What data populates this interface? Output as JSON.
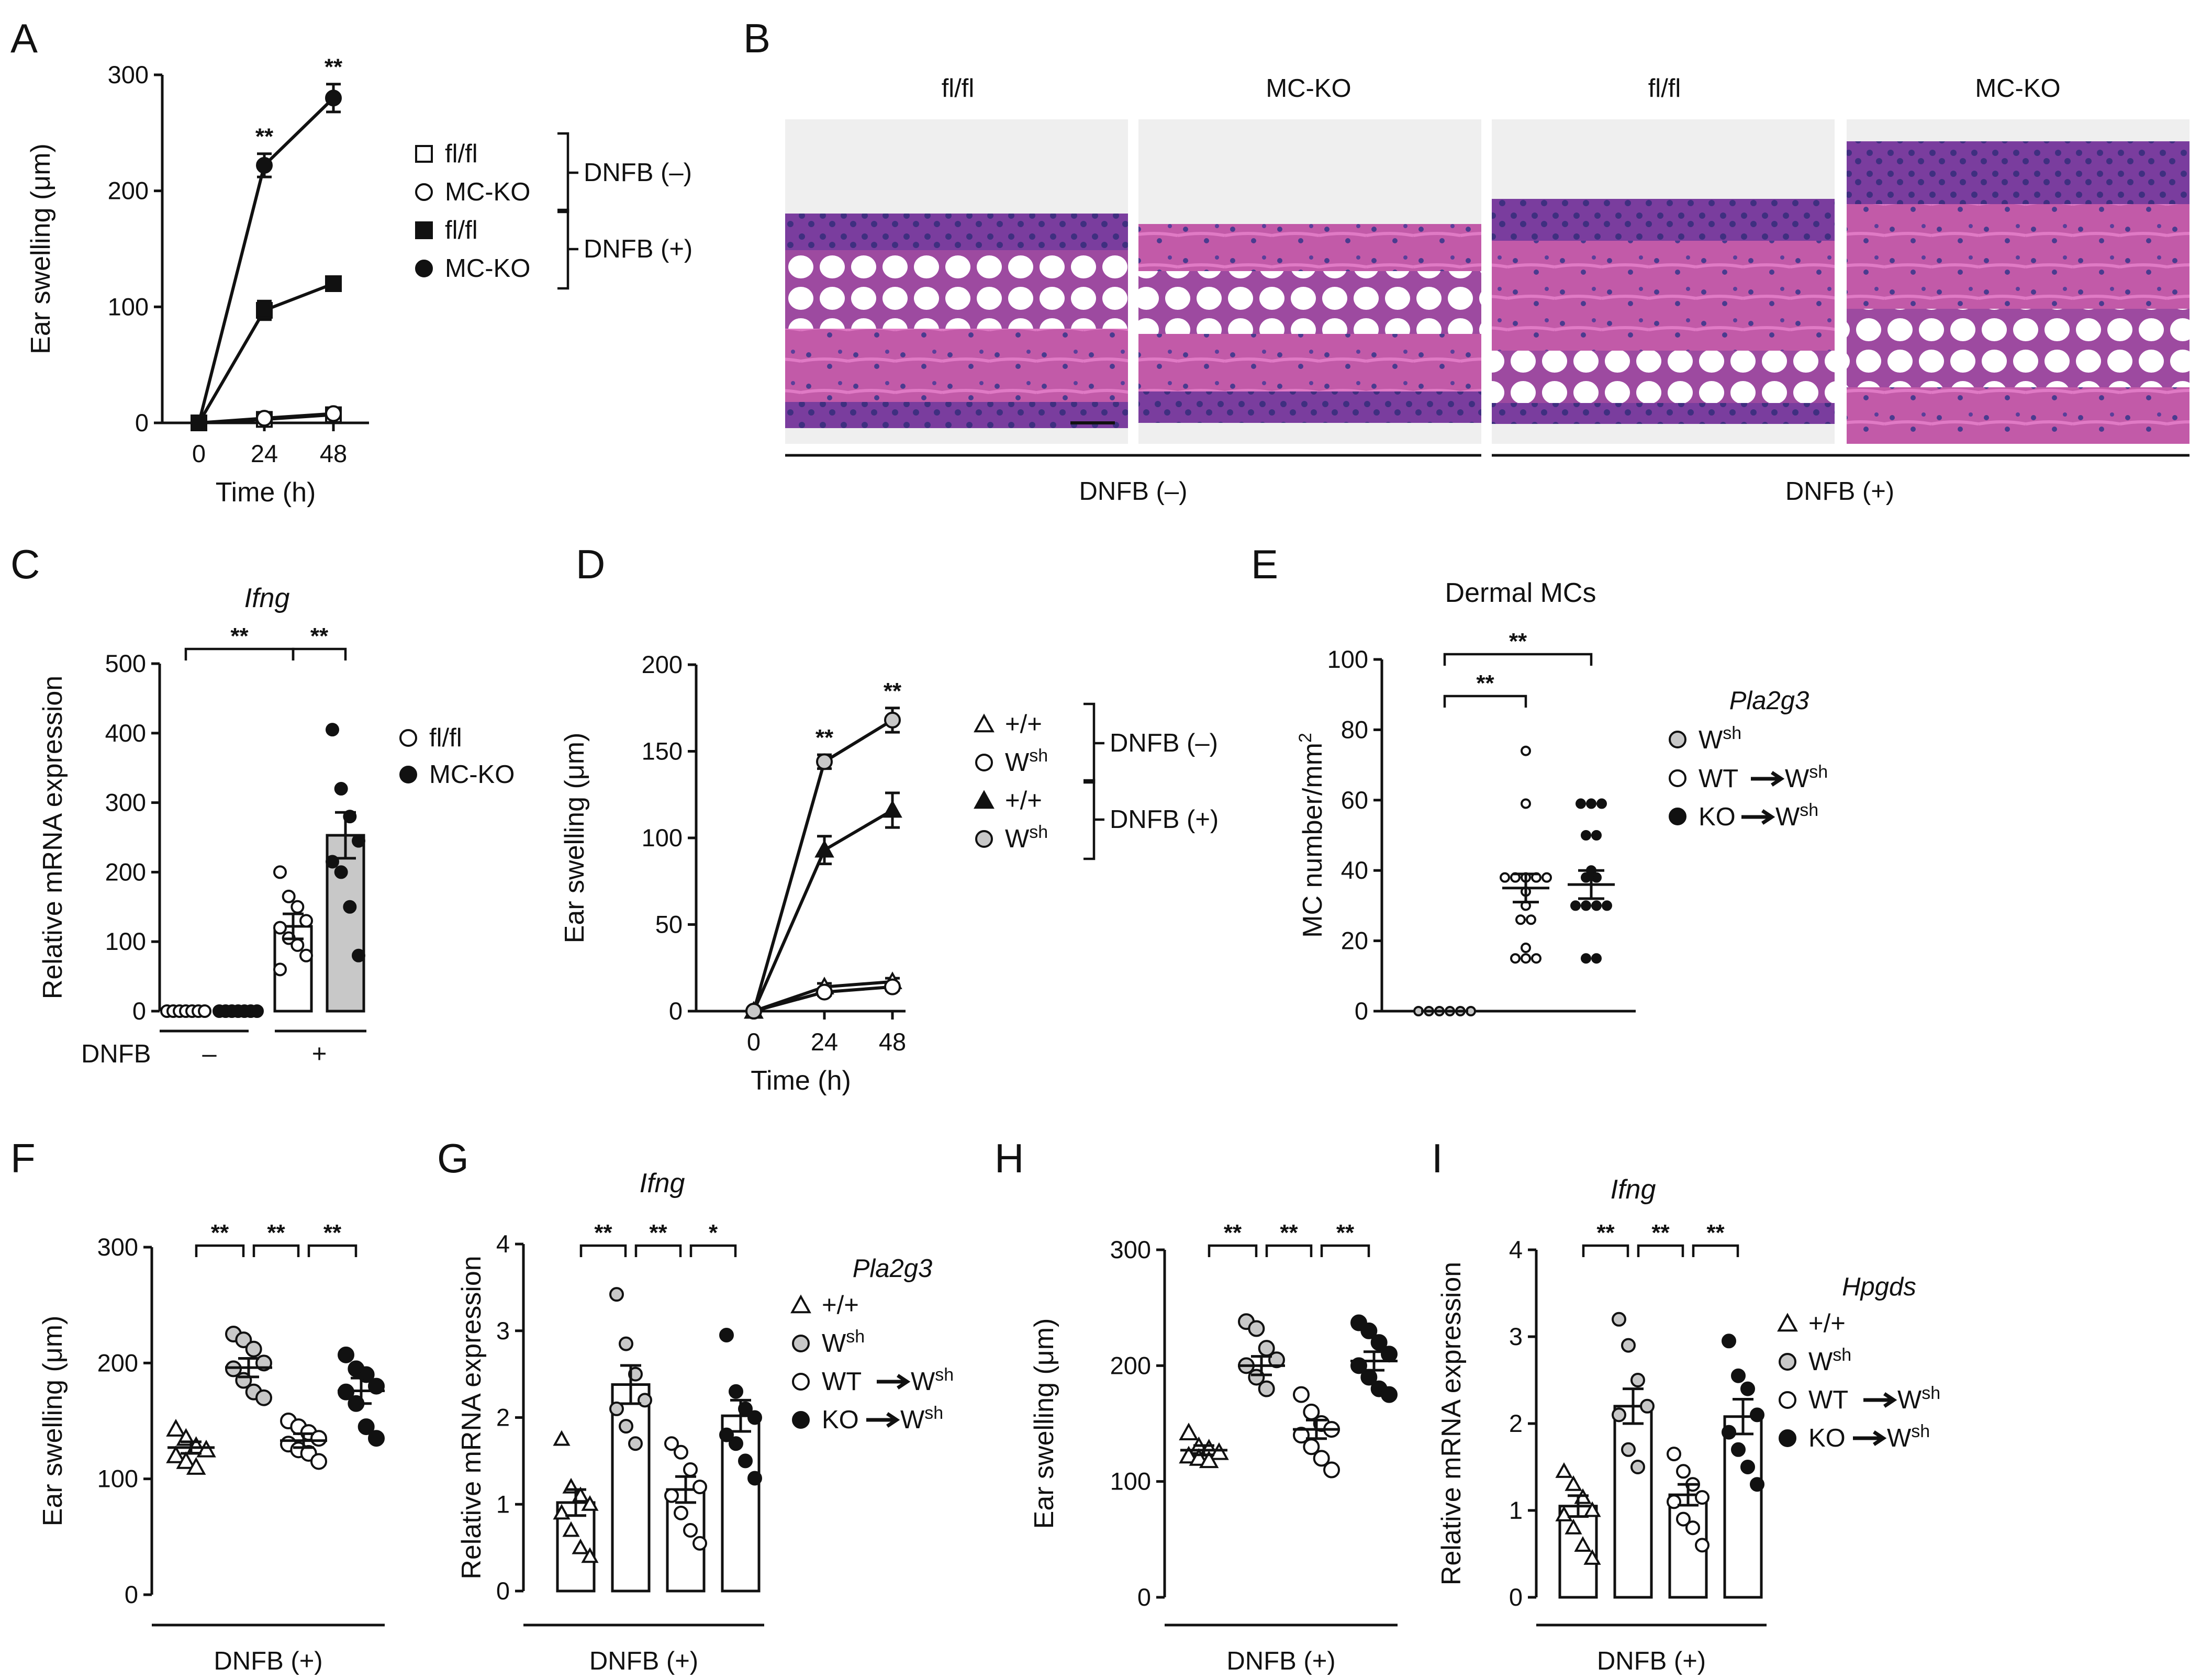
{
  "colors": {
    "white": "#ffffff",
    "black": "#111111",
    "gray": "#c8c8c8",
    "tissue_bg": "#ededed"
  },
  "icons": {
    "legend_square_open": "open-square",
    "legend_circle_open": "open-circle",
    "legend_square_filled": "filled-square",
    "legend_circle_filled": "filled-circle",
    "legend_triangle_open": "open-triangle",
    "legend_triangle_filled": "filled-triangle",
    "legend_circle_gray": "gray-circle",
    "arrow": "right-arrow"
  },
  "panels": {
    "A": {
      "letter": "A"
    },
    "B": {
      "letter": "B",
      "image_labels": [
        "fl/fl",
        "MC-KO",
        "fl/fl",
        "MC-KO"
      ],
      "group_labels": [
        "DNFB (–)",
        "DNFB (+)"
      ]
    },
    "C": {
      "letter": "C"
    },
    "D": {
      "letter": "D"
    },
    "E": {
      "letter": "E"
    },
    "F": {
      "letter": "F"
    },
    "G": {
      "letter": "G"
    },
    "H": {
      "letter": "H"
    },
    "I": {
      "letter": "I"
    }
  },
  "chart_data": [
    {
      "panel": "A",
      "type": "line",
      "title": "",
      "xlabel": "Time (h)",
      "ylabel": "Ear swelling (μm)",
      "x": [
        0,
        24,
        48
      ],
      "x_ticks": [
        "0",
        "24",
        "48"
      ],
      "ylim": [
        0,
        300
      ],
      "y_ticks": [
        "0",
        "100",
        "200",
        "300"
      ],
      "series": [
        {
          "name": "fl/fl",
          "group": "DNFB (–)",
          "marker": "square-open",
          "values": [
            0,
            3,
            7
          ],
          "err": [
            1,
            2,
            2
          ]
        },
        {
          "name": "MC-KO",
          "group": "DNFB (–)",
          "marker": "circle-open",
          "values": [
            0,
            4,
            8
          ],
          "err": [
            1,
            2,
            2
          ]
        },
        {
          "name": "fl/fl",
          "group": "DNFB (+)",
          "marker": "square-filled",
          "values": [
            0,
            97,
            120
          ],
          "err": [
            1,
            8,
            6
          ]
        },
        {
          "name": "MC-KO",
          "group": "DNFB (+)",
          "marker": "circle-filled",
          "values": [
            0,
            222,
            280
          ],
          "err": [
            1,
            10,
            12
          ]
        }
      ],
      "annotations": [
        "**",
        "**"
      ],
      "legend": {
        "labels": [
          "fl/fl",
          "MC-KO",
          "fl/fl",
          "MC-KO"
        ],
        "groups": [
          "DNFB (–)",
          "DNFB (+)"
        ]
      }
    },
    {
      "panel": "C",
      "type": "bar",
      "title": "Ifng",
      "ylabel": "Relative mRNA expression",
      "ylim": [
        0,
        500
      ],
      "y_ticks": [
        "0",
        "100",
        "200",
        "300",
        "400",
        "500"
      ],
      "row_label": "DNFB",
      "x_groups": [
        "–",
        "+"
      ],
      "categories": [
        "fl/fl –",
        "MC-KO –",
        "fl/fl +",
        "MC-KO +"
      ],
      "values": [
        0,
        0,
        122,
        253
      ],
      "err": [
        1,
        1,
        18,
        33
      ],
      "points": [
        [
          0,
          0,
          0,
          0,
          0,
          0,
          0
        ],
        [
          0,
          0,
          0,
          0,
          0,
          0,
          0
        ],
        [
          200,
          165,
          150,
          130,
          120,
          105,
          95,
          80,
          60
        ],
        [
          405,
          320,
          280,
          245,
          215,
          200,
          150,
          80
        ]
      ],
      "fills": [
        "white",
        "white",
        "white",
        "gray"
      ],
      "point_styles": [
        "open",
        "filled",
        "open",
        "filled"
      ],
      "significance": [
        {
          "label": "**",
          "from": 0,
          "to": 2
        },
        {
          "label": "**",
          "from": 2,
          "to": 3
        }
      ],
      "legend": {
        "labels": [
          "fl/fl",
          "MC-KO"
        ]
      }
    },
    {
      "panel": "D",
      "type": "line",
      "title": "",
      "xlabel": "Time (h)",
      "ylabel": "Ear swelling (μm)",
      "x": [
        0,
        24,
        48
      ],
      "x_ticks": [
        "0",
        "24",
        "48"
      ],
      "ylim": [
        0,
        200
      ],
      "y_ticks": [
        "0",
        "50",
        "100",
        "150",
        "200"
      ],
      "series": [
        {
          "name": "+/+",
          "group": "DNFB (–)",
          "marker": "triangle-open",
          "values": [
            0,
            14,
            17
          ],
          "err": [
            1,
            2,
            2
          ]
        },
        {
          "name": "Wsh",
          "group": "DNFB (–)",
          "marker": "circle-open",
          "values": [
            0,
            11,
            14
          ],
          "err": [
            1,
            2,
            2
          ]
        },
        {
          "name": "+/+",
          "group": "DNFB (+)",
          "marker": "triangle-filled",
          "values": [
            0,
            93,
            116
          ],
          "err": [
            1,
            8,
            10
          ]
        },
        {
          "name": "Wsh",
          "group": "DNFB (+)",
          "marker": "circle-gray",
          "values": [
            0,
            144,
            168
          ],
          "err": [
            1,
            4,
            7
          ]
        }
      ],
      "annotations": [
        "**",
        "**"
      ],
      "legend": {
        "labels": [
          "+/+",
          "W",
          "+/+",
          "W"
        ],
        "sup": "sh",
        "groups": [
          "DNFB (–)",
          "DNFB (+)"
        ]
      }
    },
    {
      "panel": "E",
      "type": "scatter",
      "title": "Dermal MCs",
      "ylabel": "MC number/mm",
      "ylabel_sup": "2",
      "ylim": [
        0,
        100
      ],
      "y_ticks": [
        "0",
        "20",
        "40",
        "60",
        "80",
        "100"
      ],
      "categories": [
        "Wsh",
        "WT→Wsh",
        "KO→Wsh"
      ],
      "means": [
        0,
        35,
        36
      ],
      "err": [
        0.5,
        4,
        4
      ],
      "points": [
        [
          0,
          0,
          0,
          0,
          0,
          0
        ],
        [
          74,
          59,
          38,
          38,
          38,
          38,
          38,
          34,
          30,
          26,
          26,
          18,
          15,
          15,
          15
        ],
        [
          59,
          59,
          59,
          50,
          50,
          40,
          38,
          38,
          30,
          30,
          30,
          30,
          15,
          15
        ]
      ],
      "point_styles": [
        "gray",
        "open",
        "filled"
      ],
      "significance": [
        {
          "label": "**",
          "from": 0,
          "to": 1
        },
        {
          "label": "**",
          "from": 0,
          "to": 2
        }
      ],
      "legend": {
        "title": "Pla2g3",
        "labels": [
          "W",
          "WT",
          "KO"
        ],
        "sup": "sh",
        "arrow_target": "W"
      }
    },
    {
      "panel": "F",
      "type": "scatter",
      "title": "",
      "ylabel": "Ear swelling (μm)",
      "xgroup_label": "DNFB (+)",
      "ylim": [
        0,
        300
      ],
      "y_ticks": [
        "0",
        "100",
        "200",
        "300"
      ],
      "categories": [
        "+/+",
        "Wsh",
        "WT→Wsh",
        "KO→Wsh"
      ],
      "means": [
        127,
        196,
        133,
        176
      ],
      "err": [
        5,
        8,
        6,
        11
      ],
      "points": [
        [
          143,
          135,
          128,
          125,
          120,
          115,
          110
        ],
        [
          225,
          220,
          212,
          200,
          195,
          185,
          175,
          170
        ],
        [
          150,
          145,
          140,
          135,
          130,
          125,
          122,
          115
        ],
        [
          207,
          195,
          190,
          180,
          175,
          165,
          145,
          135
        ]
      ],
      "point_styles": [
        "triangle-open",
        "gray",
        "open",
        "filled"
      ],
      "significance": [
        {
          "label": "**",
          "from": 0,
          "to": 1
        },
        {
          "label": "**",
          "from": 1,
          "to": 2
        },
        {
          "label": "**",
          "from": 2,
          "to": 3
        }
      ]
    },
    {
      "panel": "G",
      "type": "bar",
      "title": "Ifng",
      "ylabel": "Relative mRNA expression",
      "xgroup_label": "DNFB (+)",
      "ylim": [
        0,
        4
      ],
      "y_ticks": [
        "0",
        "1",
        "2",
        "3",
        "4"
      ],
      "categories": [
        "+/+",
        "Wsh",
        "WT→Wsh",
        "KO→Wsh"
      ],
      "values": [
        1.02,
        2.38,
        1.17,
        2.02
      ],
      "err": [
        0.15,
        0.22,
        0.15,
        0.18
      ],
      "points": [
        [
          1.75,
          1.2,
          1.1,
          1.0,
          0.9,
          0.7,
          0.5,
          0.4
        ],
        [
          3.42,
          2.85,
          2.5,
          2.2,
          2.1,
          1.9,
          1.7
        ],
        [
          1.7,
          1.6,
          1.4,
          1.2,
          1.1,
          0.9,
          0.7,
          0.55
        ],
        [
          2.95,
          2.3,
          2.1,
          2.0,
          1.8,
          1.7,
          1.5,
          1.3
        ]
      ],
      "fills": [
        "white",
        "white",
        "white",
        "white"
      ],
      "point_styles": [
        "triangle-open",
        "gray",
        "open",
        "filled"
      ],
      "significance": [
        {
          "label": "**",
          "from": 0,
          "to": 1
        },
        {
          "label": "**",
          "from": 1,
          "to": 2
        },
        {
          "label": "*",
          "from": 2,
          "to": 3
        }
      ],
      "legend": {
        "title": "Pla2g3",
        "labels": [
          "+/+",
          "W",
          "WT",
          "KO"
        ],
        "sup": "sh"
      }
    },
    {
      "panel": "H",
      "type": "scatter",
      "title": "",
      "ylabel": "Ear swelling (μm)",
      "xgroup_label": "DNFB (+)",
      "ylim": [
        0,
        300
      ],
      "y_ticks": [
        "0",
        "100",
        "200",
        "300"
      ],
      "categories": [
        "+/+",
        "Wsh",
        "WT→Wsh",
        "KO→Wsh"
      ],
      "means": [
        127,
        200,
        145,
        204
      ],
      "err": [
        4,
        8,
        8,
        8
      ],
      "points": [
        [
          142,
          130,
          128,
          125,
          122,
          120,
          118
        ],
        [
          238,
          232,
          215,
          205,
          200,
          190,
          180
        ],
        [
          175,
          160,
          150,
          145,
          140,
          130,
          120,
          110
        ],
        [
          237,
          230,
          220,
          210,
          200,
          190,
          180,
          175
        ]
      ],
      "point_styles": [
        "triangle-open",
        "gray",
        "open",
        "filled"
      ],
      "significance": [
        {
          "label": "**",
          "from": 0,
          "to": 1
        },
        {
          "label": "**",
          "from": 1,
          "to": 2
        },
        {
          "label": "**",
          "from": 2,
          "to": 3
        }
      ]
    },
    {
      "panel": "I",
      "type": "bar",
      "title": "Ifng",
      "ylabel": "Relative mRNA expression",
      "xgroup_label": "DNFB (+)",
      "ylim": [
        0,
        4
      ],
      "y_ticks": [
        "0",
        "1",
        "2",
        "3",
        "4"
      ],
      "categories": [
        "+/+",
        "Wsh",
        "WT→Wsh",
        "KO→Wsh"
      ],
      "values": [
        1.05,
        2.2,
        1.18,
        2.08
      ],
      "err": [
        0.12,
        0.2,
        0.12,
        0.2
      ],
      "points": [
        [
          1.45,
          1.3,
          1.15,
          1.0,
          0.95,
          0.8,
          0.6,
          0.45
        ],
        [
          3.2,
          2.9,
          2.5,
          2.2,
          2.1,
          1.7,
          1.5
        ],
        [
          1.65,
          1.45,
          1.3,
          1.15,
          1.1,
          0.9,
          0.8,
          0.6
        ],
        [
          2.95,
          2.55,
          2.4,
          2.1,
          1.9,
          1.7,
          1.5,
          1.3
        ]
      ],
      "fills": [
        "white",
        "white",
        "white",
        "white"
      ],
      "point_styles": [
        "triangle-open",
        "gray",
        "open",
        "filled"
      ],
      "significance": [
        {
          "label": "**",
          "from": 0,
          "to": 1
        },
        {
          "label": "**",
          "from": 1,
          "to": 2
        },
        {
          "label": "**",
          "from": 2,
          "to": 3
        }
      ],
      "legend": {
        "title": "Hpgds",
        "labels": [
          "+/+",
          "W",
          "WT",
          "KO"
        ],
        "sup": "sh"
      }
    }
  ]
}
